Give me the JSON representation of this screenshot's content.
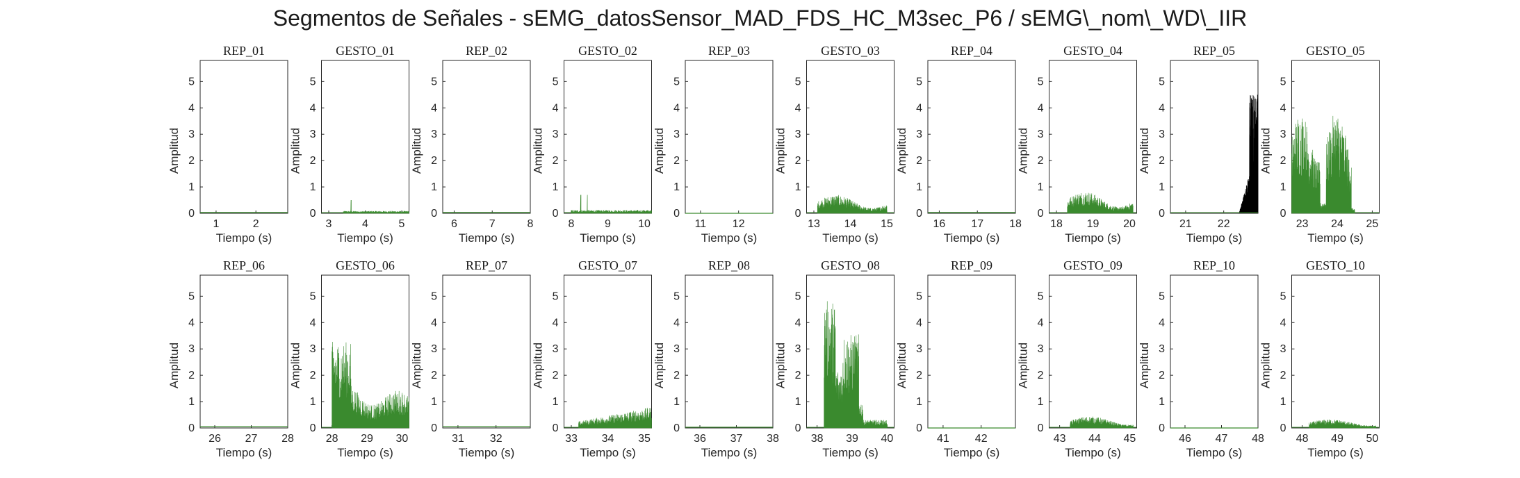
{
  "title": "Segmentos de Señales - sEMG_datosSensor_MAD_FDS_HC_M3sec_P6 / sEMG\\_nom\\_WD\\_IIR",
  "colors": {
    "gesture": "#3a8a2e",
    "rep_active": "#000000",
    "axis": "#262626"
  },
  "chart_data": [
    {
      "type": "area",
      "title": "REP_01",
      "xlabel": "Tiempo (s)",
      "ylabel": "Amplitud",
      "xlim": [
        0.6,
        2.8
      ],
      "ylim": [
        0,
        5.8
      ],
      "xticks": [
        1,
        2
      ],
      "yticks": [
        0,
        1,
        2,
        3,
        4,
        5
      ],
      "signal": "flat",
      "peak": 0.03,
      "active_range": [
        0.6,
        2.8
      ]
    },
    {
      "type": "area",
      "title": "GESTO_01",
      "xlabel": "Tiempo (s)",
      "ylabel": "Amplitud",
      "xlim": [
        2.8,
        5.2
      ],
      "ylim": [
        0,
        5.8
      ],
      "xticks": [
        3,
        4,
        5
      ],
      "yticks": [
        0,
        1,
        2,
        3,
        4,
        5
      ],
      "signal": "low",
      "peak": 0.5,
      "active_range": [
        3.4,
        5.2
      ]
    },
    {
      "type": "area",
      "title": "REP_02",
      "xlabel": "Tiempo (s)",
      "ylabel": "Amplitud",
      "xlim": [
        5.7,
        8.0
      ],
      "ylim": [
        0,
        5.8
      ],
      "xticks": [
        6,
        7,
        8
      ],
      "yticks": [
        0,
        1,
        2,
        3,
        4,
        5
      ],
      "signal": "flat",
      "peak": 0.03,
      "active_range": [
        5.7,
        8.0
      ]
    },
    {
      "type": "area",
      "title": "GESTO_02",
      "xlabel": "Tiempo (s)",
      "ylabel": "Amplitud",
      "xlim": [
        7.8,
        10.2
      ],
      "ylim": [
        0,
        5.8
      ],
      "xticks": [
        8,
        9,
        10
      ],
      "yticks": [
        0,
        1,
        2,
        3,
        4,
        5
      ],
      "signal": "low",
      "peak": 0.7,
      "active_range": [
        8.0,
        10.2
      ]
    },
    {
      "type": "area",
      "title": "REP_03",
      "xlabel": "Tiempo (s)",
      "ylabel": "Amplitud",
      "xlim": [
        10.6,
        12.9
      ],
      "ylim": [
        0,
        5.8
      ],
      "xticks": [
        11,
        12
      ],
      "yticks": [
        0,
        1,
        2,
        3,
        4,
        5
      ],
      "signal": "flat",
      "peak": 0.0,
      "active_range": [
        10.6,
        12.9
      ]
    },
    {
      "type": "area",
      "title": "GESTO_03",
      "xlabel": "Tiempo (s)",
      "ylabel": "Amplitud",
      "xlim": [
        12.8,
        15.2
      ],
      "ylim": [
        0,
        5.8
      ],
      "xticks": [
        13,
        14,
        15
      ],
      "yticks": [
        0,
        1,
        2,
        3,
        4,
        5
      ],
      "signal": "medium",
      "peak": 1.0,
      "active_range": [
        13.1,
        15.0
      ]
    },
    {
      "type": "area",
      "title": "REP_04",
      "xlabel": "Tiempo (s)",
      "ylabel": "Amplitud",
      "xlim": [
        15.7,
        18.0
      ],
      "ylim": [
        0,
        5.8
      ],
      "xticks": [
        16,
        17,
        18
      ],
      "yticks": [
        0,
        1,
        2,
        3,
        4,
        5
      ],
      "signal": "flat",
      "peak": 0.03,
      "active_range": [
        15.7,
        18.0
      ]
    },
    {
      "type": "area",
      "title": "GESTO_04",
      "xlabel": "Tiempo (s)",
      "ylabel": "Amplitud",
      "xlim": [
        17.8,
        20.2
      ],
      "ylim": [
        0,
        5.8
      ],
      "xticks": [
        18,
        19,
        20
      ],
      "yticks": [
        0,
        1,
        2,
        3,
        4,
        5
      ],
      "signal": "medium",
      "peak": 1.2,
      "active_range": [
        18.3,
        20.1
      ]
    },
    {
      "type": "area",
      "title": "REP_05",
      "xlabel": "Tiempo (s)",
      "ylabel": "Amplitud",
      "xlim": [
        20.6,
        22.9
      ],
      "ylim": [
        0,
        5.8
      ],
      "xticks": [
        21,
        22
      ],
      "yticks": [
        0,
        1,
        2,
        3,
        4,
        5
      ],
      "signal": "burst",
      "peak": 5.1,
      "active_range": [
        22.4,
        22.9
      ]
    },
    {
      "type": "area",
      "title": "GESTO_05",
      "xlabel": "Tiempo (s)",
      "ylabel": "Amplitud",
      "xlim": [
        22.7,
        25.2
      ],
      "ylim": [
        0,
        5.8
      ],
      "xticks": [
        23,
        24,
        25
      ],
      "yticks": [
        0,
        1,
        2,
        3,
        4,
        5
      ],
      "signal": "high",
      "peak": 3.9,
      "active_range": [
        22.7,
        24.5
      ]
    },
    {
      "type": "area",
      "title": "REP_06",
      "xlabel": "Tiempo (s)",
      "ylabel": "Amplitud",
      "xlim": [
        25.6,
        28.0
      ],
      "ylim": [
        0,
        5.8
      ],
      "xticks": [
        26,
        27,
        28
      ],
      "yticks": [
        0,
        1,
        2,
        3,
        4,
        5
      ],
      "signal": "flat",
      "peak": 0.05,
      "active_range": [
        25.6,
        28.0
      ]
    },
    {
      "type": "area",
      "title": "GESTO_06",
      "xlabel": "Tiempo (s)",
      "ylabel": "Amplitud",
      "xlim": [
        27.7,
        30.2
      ],
      "ylim": [
        0,
        5.8
      ],
      "xticks": [
        28,
        29,
        30
      ],
      "yticks": [
        0,
        1,
        2,
        3,
        4,
        5
      ],
      "signal": "high-decay",
      "peak": 4.1,
      "active_range": [
        28.0,
        30.2
      ]
    },
    {
      "type": "area",
      "title": "REP_07",
      "xlabel": "Tiempo (s)",
      "ylabel": "Amplitud",
      "xlim": [
        30.6,
        32.9
      ],
      "ylim": [
        0,
        5.8
      ],
      "xticks": [
        31,
        32
      ],
      "yticks": [
        0,
        1,
        2,
        3,
        4,
        5
      ],
      "signal": "flat",
      "peak": 0.05,
      "active_range": [
        30.6,
        32.9
      ]
    },
    {
      "type": "area",
      "title": "GESTO_07",
      "xlabel": "Tiempo (s)",
      "ylabel": "Amplitud",
      "xlim": [
        32.8,
        35.2
      ],
      "ylim": [
        0,
        5.8
      ],
      "xticks": [
        33,
        34,
        35
      ],
      "yticks": [
        0,
        1,
        2,
        3,
        4,
        5
      ],
      "signal": "ramp",
      "peak": 1.0,
      "active_range": [
        33.2,
        35.2
      ]
    },
    {
      "type": "area",
      "title": "REP_08",
      "xlabel": "Tiempo (s)",
      "ylabel": "Amplitud",
      "xlim": [
        35.6,
        38.0
      ],
      "ylim": [
        0,
        5.8
      ],
      "xticks": [
        36,
        37,
        38
      ],
      "yticks": [
        0,
        1,
        2,
        3,
        4,
        5
      ],
      "signal": "flat",
      "peak": 0.03,
      "active_range": [
        35.6,
        38.0
      ]
    },
    {
      "type": "area",
      "title": "GESTO_08",
      "xlabel": "Tiempo (s)",
      "ylabel": "Amplitud",
      "xlim": [
        37.7,
        40.2
      ],
      "ylim": [
        0,
        5.8
      ],
      "xticks": [
        38,
        39,
        40
      ],
      "yticks": [
        0,
        1,
        2,
        3,
        4,
        5
      ],
      "signal": "high-two",
      "peak": 5.1,
      "active_range": [
        38.2,
        40.0
      ]
    },
    {
      "type": "area",
      "title": "REP_09",
      "xlabel": "Tiempo (s)",
      "ylabel": "Amplitud",
      "xlim": [
        40.6,
        42.9
      ],
      "ylim": [
        0,
        5.8
      ],
      "xticks": [
        41,
        42
      ],
      "yticks": [
        0,
        1,
        2,
        3,
        4,
        5
      ],
      "signal": "flat",
      "peak": 0.0,
      "active_range": [
        40.6,
        42.9
      ]
    },
    {
      "type": "area",
      "title": "GESTO_09",
      "xlabel": "Tiempo (s)",
      "ylabel": "Amplitud",
      "xlim": [
        42.7,
        45.2
      ],
      "ylim": [
        0,
        5.8
      ],
      "xticks": [
        43,
        44,
        45
      ],
      "yticks": [
        0,
        1,
        2,
        3,
        4,
        5
      ],
      "signal": "low-medium",
      "peak": 0.8,
      "active_range": [
        43.3,
        45.1
      ]
    },
    {
      "type": "area",
      "title": "REP_10",
      "xlabel": "Tiempo (s)",
      "ylabel": "Amplitud",
      "xlim": [
        45.6,
        48.0
      ],
      "ylim": [
        0,
        5.8
      ],
      "xticks": [
        46,
        47,
        48
      ],
      "yticks": [
        0,
        1,
        2,
        3,
        4,
        5
      ],
      "signal": "flat",
      "peak": 0.0,
      "active_range": [
        45.6,
        48.0
      ]
    },
    {
      "type": "area",
      "title": "GESTO_10",
      "xlabel": "Tiempo (s)",
      "ylabel": "Amplitud",
      "xlim": [
        47.7,
        50.2
      ],
      "ylim": [
        0,
        5.8
      ],
      "xticks": [
        48,
        49,
        50
      ],
      "yticks": [
        0,
        1,
        2,
        3,
        4,
        5
      ],
      "signal": "low-medium",
      "peak": 0.6,
      "active_range": [
        48.2,
        50.1
      ]
    }
  ]
}
